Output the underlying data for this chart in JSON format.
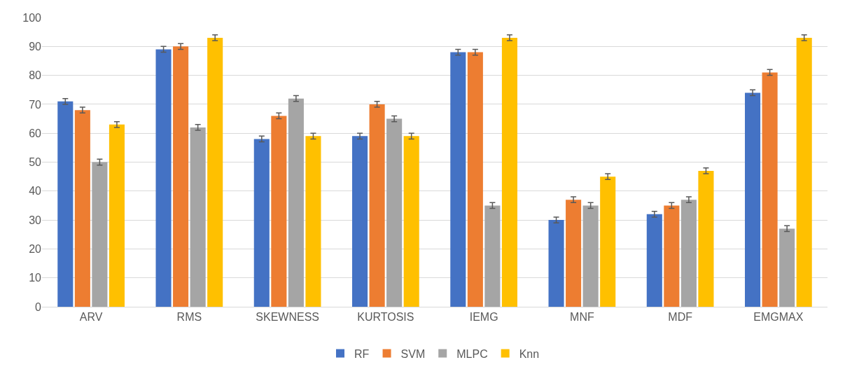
{
  "chart_data": {
    "type": "bar",
    "categories": [
      "ARV",
      "RMS",
      "SKEWNESS",
      "KURTOSIS",
      "IEMG",
      "MNF",
      "MDF",
      "EMGMAX"
    ],
    "series": [
      {
        "name": "RF",
        "color": "#4472c4",
        "values": [
          71,
          89,
          58,
          59,
          88,
          30,
          32,
          74
        ],
        "errors": [
          1,
          1,
          1,
          1,
          1,
          1,
          1,
          1
        ]
      },
      {
        "name": "SVM",
        "color": "#ed7d31",
        "values": [
          68,
          90,
          66,
          70,
          88,
          37,
          35,
          81
        ],
        "errors": [
          1,
          1,
          1,
          1,
          1,
          1,
          1,
          1
        ]
      },
      {
        "name": "MLPC",
        "color": "#a5a5a5",
        "values": [
          50,
          62,
          72,
          65,
          35,
          35,
          37,
          27
        ],
        "errors": [
          1,
          1,
          1,
          1,
          1,
          1,
          1,
          1
        ]
      },
      {
        "name": "Knn",
        "color": "#ffc000",
        "values": [
          63,
          93,
          59,
          59,
          93,
          45,
          47,
          93
        ],
        "errors": [
          1,
          1,
          1,
          1,
          1,
          1,
          1,
          1
        ]
      }
    ],
    "ylim": [
      0,
      100
    ],
    "yticks": [
      0,
      10,
      20,
      30,
      40,
      50,
      60,
      70,
      80,
      90,
      100
    ],
    "grid": "y",
    "legend": "bottom"
  }
}
